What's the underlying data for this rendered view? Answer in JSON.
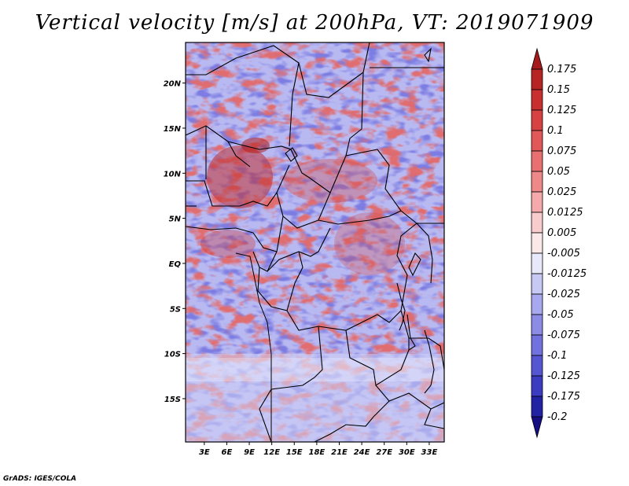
{
  "title": "Vertical velocity [m/s] at 200hPa, VT: 2019071909",
  "credit": "GrADS: IGES/COLA",
  "map": {
    "lat_labels": [
      "20N",
      "15N",
      "10N",
      "5N",
      "EQ",
      "5S",
      "10S",
      "15S"
    ],
    "lat_values": [
      20,
      15,
      10,
      5,
      0,
      -5,
      -10,
      -15
    ],
    "lon_labels": [
      "3E",
      "6E",
      "9E",
      "12E",
      "15E",
      "18E",
      "21E",
      "24E",
      "27E",
      "30E",
      "33E"
    ],
    "lon_values": [
      3,
      6,
      9,
      12,
      15,
      18,
      21,
      24,
      27,
      30,
      33
    ],
    "lon_range": [
      0.5,
      35.0
    ],
    "lat_range": [
      -19.8,
      24.5
    ]
  },
  "colorbar": {
    "labels": [
      "0.175",
      "0.15",
      "0.125",
      "0.1",
      "0.075",
      "0.05",
      "0.025",
      "0.0125",
      "0.005",
      "-0.005",
      "-0.0125",
      "-0.025",
      "-0.05",
      "-0.075",
      "-0.1",
      "-0.125",
      "-0.175",
      "-0.2"
    ],
    "colors": [
      "#a51a1a",
      "#b72424",
      "#c83030",
      "#d64242",
      "#e05858",
      "#e87070",
      "#ef8888",
      "#f4aaaa",
      "#f8cccc",
      "#fbe8e8",
      "#e8e8fb",
      "#c8c8f4",
      "#a8a8ee",
      "#8c8ce6",
      "#7272de",
      "#5656d2",
      "#3c3cc0",
      "#2222a4",
      "#160e82"
    ]
  }
}
